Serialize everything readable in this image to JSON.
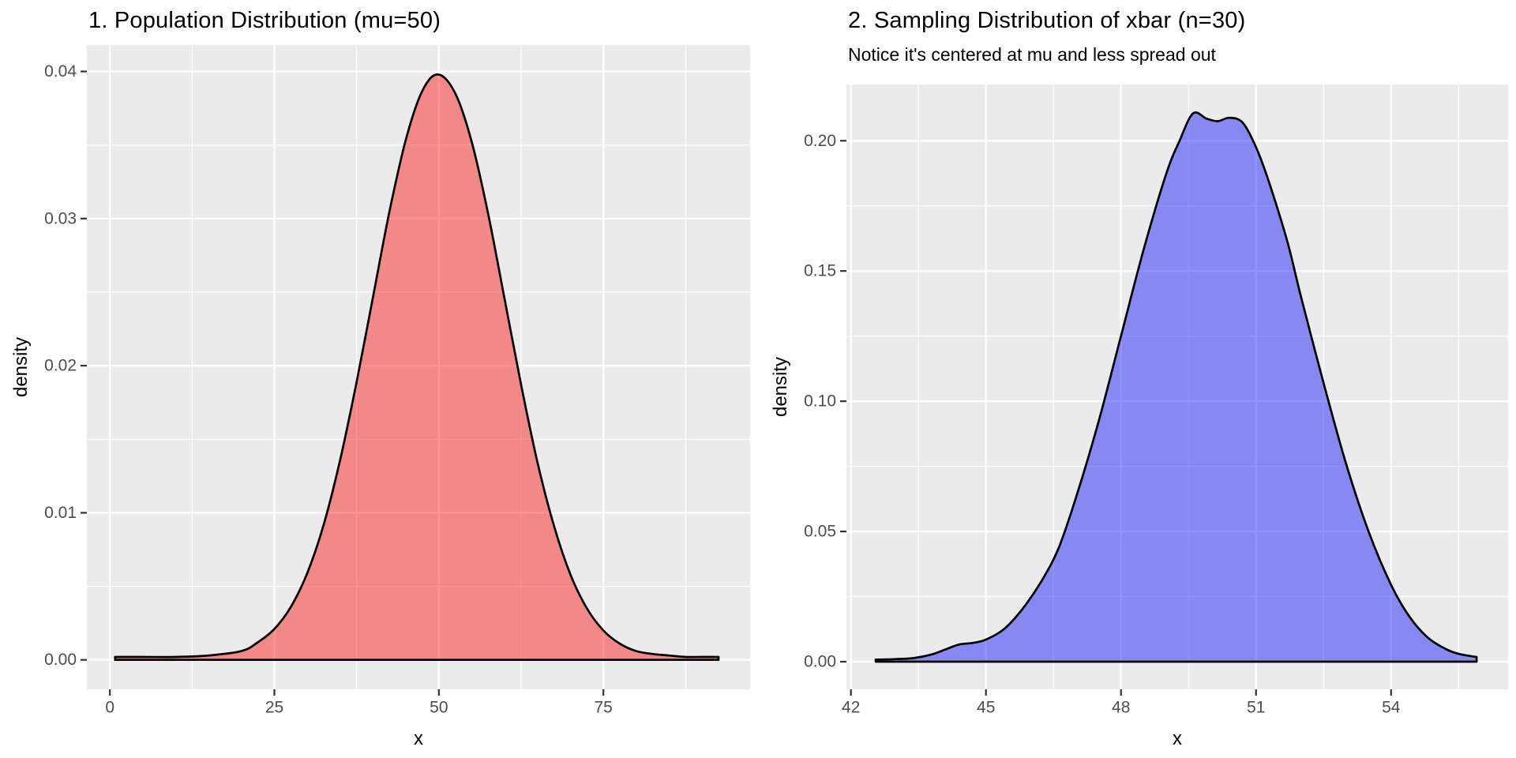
{
  "figure": {
    "background": "#FFFFFF",
    "theme": {
      "panel_background": "#EBEBEB",
      "grid_major_color": "#FFFFFF",
      "grid_minor_color": "#FFFFFF",
      "tick_mark_color": "#333333",
      "tick_label_color": "#4D4D4D",
      "title_color": "#000000",
      "axis_title_color": "#000000",
      "curve_stroke_color": "#000000"
    }
  },
  "chart_data": [
    {
      "type": "area",
      "title": "1. Population Distribution (mu=50)",
      "subtitle": "",
      "xlabel": "x",
      "ylabel": "density",
      "legend": "none",
      "grid": true,
      "fill_color": "#FF0000",
      "fill_alpha": 0.42,
      "line_color": "#000000",
      "xlim": [
        -3.5,
        97.3
      ],
      "ylim": [
        -0.002,
        0.0418
      ],
      "x_ticks": [
        0,
        25,
        50,
        75
      ],
      "x_tick_labels": [
        "0",
        "25",
        "50",
        "75"
      ],
      "x_minor": [
        12.5,
        37.5,
        62.5,
        87.5
      ],
      "y_ticks": [
        0,
        0.01,
        0.02,
        0.03,
        0.04
      ],
      "y_tick_labels": [
        "0.00",
        "0.01",
        "0.02",
        "0.03",
        "0.04"
      ],
      "y_minor": [
        0.005,
        0.015,
        0.025,
        0.035
      ],
      "points": {
        "x": [
          0.8,
          5,
          10,
          15,
          20,
          22.5,
          25,
          27.5,
          30,
          32.5,
          35,
          37.5,
          40,
          42.5,
          45,
          47.5,
          49.9,
          52.5,
          55,
          57.5,
          60,
          62.5,
          65,
          67.5,
          70,
          72.5,
          75,
          77.5,
          80,
          82.5,
          85,
          87.5,
          90,
          92.5
        ],
        "y": [
          0.0002,
          0.0002,
          0.0002,
          0.0003,
          0.0006,
          0.0012,
          0.0021,
          0.0036,
          0.0059,
          0.0092,
          0.0136,
          0.0189,
          0.0247,
          0.0305,
          0.0354,
          0.0387,
          0.0398,
          0.0385,
          0.0352,
          0.0303,
          0.0245,
          0.0187,
          0.0134,
          0.0091,
          0.0058,
          0.0035,
          0.002,
          0.0011,
          0.0006,
          0.0004,
          0.0003,
          0.0002,
          0.0002,
          0.0002
        ]
      }
    },
    {
      "type": "area",
      "title": "2. Sampling Distribution of xbar (n=30)",
      "subtitle": "Notice it's centered at mu and less spread out",
      "xlabel": "x",
      "ylabel": "density",
      "legend": "none",
      "grid": true,
      "fill_color": "#0000FF",
      "fill_alpha": 0.42,
      "line_color": "#000000",
      "xlim": [
        41.9,
        56.6
      ],
      "ylim": [
        -0.0106,
        0.2216
      ],
      "x_ticks": [
        42,
        45,
        48,
        51,
        54
      ],
      "x_tick_labels": [
        "42",
        "45",
        "48",
        "51",
        "54"
      ],
      "x_minor": [
        43.5,
        46.5,
        49.5,
        52.5,
        55.5
      ],
      "y_ticks": [
        0,
        0.05,
        0.1,
        0.15,
        0.2
      ],
      "y_tick_labels": [
        "0.00",
        "0.05",
        "0.10",
        "0.15",
        "0.20"
      ],
      "y_minor": [
        0.025,
        0.075,
        0.125,
        0.175
      ],
      "points": {
        "x": [
          42.55,
          43.0,
          43.4,
          43.8,
          44.1,
          44.4,
          44.7,
          45.0,
          45.4,
          45.8,
          46.2,
          46.6,
          47.0,
          47.5,
          48.0,
          48.5,
          49.0,
          49.3,
          49.6,
          49.9,
          50.15,
          50.4,
          50.7,
          51.0,
          51.3,
          51.7,
          52.0,
          52.5,
          53.0,
          53.5,
          54.0,
          54.4,
          54.8,
          55.2,
          55.5,
          55.9
        ],
        "y": [
          0.0008,
          0.001,
          0.0014,
          0.0028,
          0.0047,
          0.0066,
          0.0072,
          0.0085,
          0.0125,
          0.02,
          0.03,
          0.043,
          0.063,
          0.092,
          0.125,
          0.158,
          0.187,
          0.2,
          0.2105,
          0.2085,
          0.2075,
          0.2088,
          0.207,
          0.1975,
          0.1835,
          0.161,
          0.14,
          0.107,
          0.076,
          0.05,
          0.0295,
          0.0175,
          0.0095,
          0.005,
          0.003,
          0.0018
        ]
      }
    }
  ]
}
